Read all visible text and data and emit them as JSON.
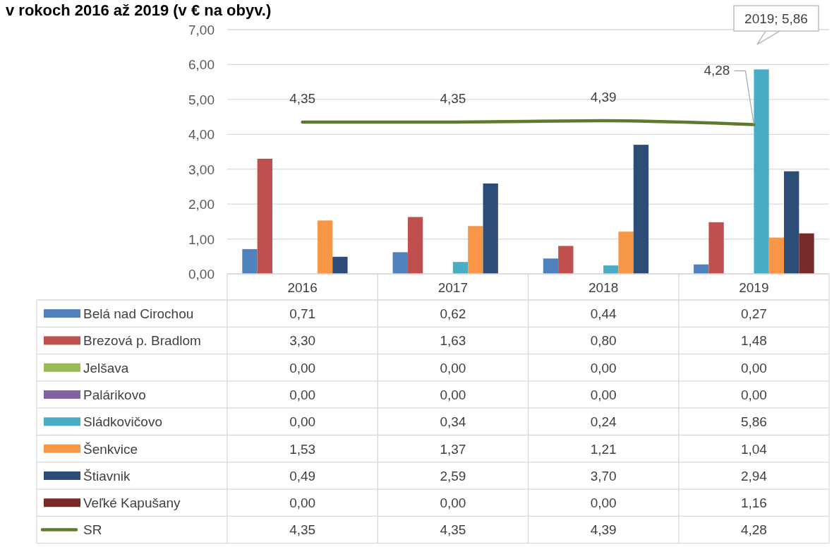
{
  "chart_data": {
    "type": "bar",
    "title": "v rokoch 2016 až 2019 (v € na obyv.)",
    "categories": [
      "2016",
      "2017",
      "2018",
      "2019"
    ],
    "ylim": [
      0,
      7
    ],
    "yticks": [
      {
        "value": 0,
        "label": "0,00"
      },
      {
        "value": 1,
        "label": "1,00"
      },
      {
        "value": 2,
        "label": "2,00"
      },
      {
        "value": 3,
        "label": "3,00"
      },
      {
        "value": 4,
        "label": "4,00"
      },
      {
        "value": 5,
        "label": "5,00"
      },
      {
        "value": 6,
        "label": "6,00"
      },
      {
        "value": 7,
        "label": "7,00"
      }
    ],
    "grid": "y",
    "legend": "bottom",
    "annotations": [
      "2019; 5,86"
    ],
    "series": [
      {
        "name": "Belá nad Cirochou",
        "color": "#4f81bd",
        "values": [
          0.71,
          0.62,
          0.44,
          0.27
        ],
        "value_labels": [
          "0,71",
          "0,62",
          "0,44",
          "0,27"
        ]
      },
      {
        "name": "Brezová p. Bradlom",
        "color": "#c0504d",
        "values": [
          3.3,
          1.63,
          0.8,
          1.48
        ],
        "value_labels": [
          "3,30",
          "1,63",
          "0,80",
          "1,48"
        ]
      },
      {
        "name": "Jelšava",
        "color": "#9bbb59",
        "values": [
          0,
          0,
          0,
          0
        ],
        "value_labels": [
          "0,00",
          "0,00",
          "0,00",
          "0,00"
        ]
      },
      {
        "name": "Palárikovo",
        "color": "#8064a2",
        "values": [
          0,
          0,
          0,
          0
        ],
        "value_labels": [
          "0,00",
          "0,00",
          "0,00",
          "0,00"
        ]
      },
      {
        "name": "Sládkovičovo",
        "color": "#4bacc6",
        "values": [
          0,
          0.34,
          0.24,
          5.86
        ],
        "value_labels": [
          "0,00",
          "0,34",
          "0,24",
          "5,86"
        ]
      },
      {
        "name": "Šenkvice",
        "color": "#f79646",
        "values": [
          1.53,
          1.37,
          1.21,
          1.04
        ],
        "value_labels": [
          "1,53",
          "1,37",
          "1,21",
          "1,04"
        ]
      },
      {
        "name": "Štiavnik",
        "color": "#2c4d75",
        "values": [
          0.49,
          2.59,
          3.7,
          2.94
        ],
        "value_labels": [
          "0,49",
          "2,59",
          "3,70",
          "2,94"
        ]
      },
      {
        "name": "Veľké Kapušany",
        "color": "#772c2a",
        "values": [
          0,
          0,
          0,
          1.16
        ],
        "value_labels": [
          "0,00",
          "0,00",
          "0,00",
          "1,16"
        ]
      },
      {
        "name": "SR",
        "type": "line",
        "color": "#5e7a2e",
        "values": [
          4.35,
          4.35,
          4.39,
          4.28
        ],
        "value_labels": [
          "4,35",
          "4,35",
          "4,39",
          "4,28"
        ]
      }
    ]
  }
}
